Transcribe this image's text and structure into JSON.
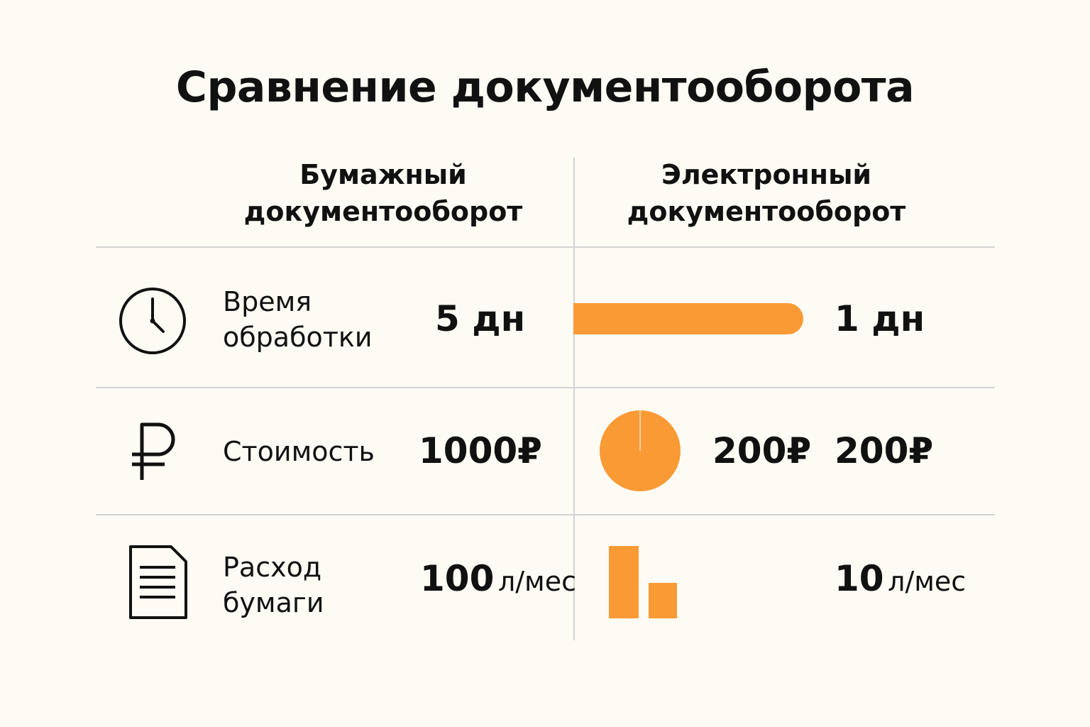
{
  "title": "Сравнение документооборота",
  "columns": {
    "paper": {
      "line1": "Бумажный",
      "line2": "документооборот"
    },
    "electronic": {
      "line1": "Электронный",
      "line2": "документооборот"
    }
  },
  "colors": {
    "accent": "#f99a35",
    "divider": "#d3d3d3",
    "background": "#fdfbf4",
    "text": "#111111"
  },
  "rows": [
    {
      "icon": "clock-icon",
      "label": "Время\nобработки",
      "paper_value": "5 дн",
      "electronic_value": "1 дн"
    },
    {
      "icon": "ruble-icon",
      "label": "Стоимость",
      "paper_value": "1000₽",
      "electronic_mid_value": "200₽",
      "electronic_value": "200₽"
    },
    {
      "icon": "document-icon",
      "label": "Расход\nбумаги",
      "paper_number": "100",
      "paper_unit": "л/мес",
      "electronic_number": "10",
      "electronic_unit": "л/мес"
    }
  ],
  "chart_data": {
    "type": "table",
    "title": "Сравнение документооборота",
    "columns": [
      "Бумажный документооборот",
      "Электронный документооборот"
    ],
    "metrics": [
      {
        "label": "Время обработки",
        "paper": 5,
        "electronic": 1,
        "unit": "дн"
      },
      {
        "label": "Стоимость",
        "paper": 1000,
        "electronic": 200,
        "unit": "₽"
      },
      {
        "label": "Расход бумаги",
        "paper": 100,
        "electronic": 10,
        "unit": "л/мес"
      }
    ]
  }
}
